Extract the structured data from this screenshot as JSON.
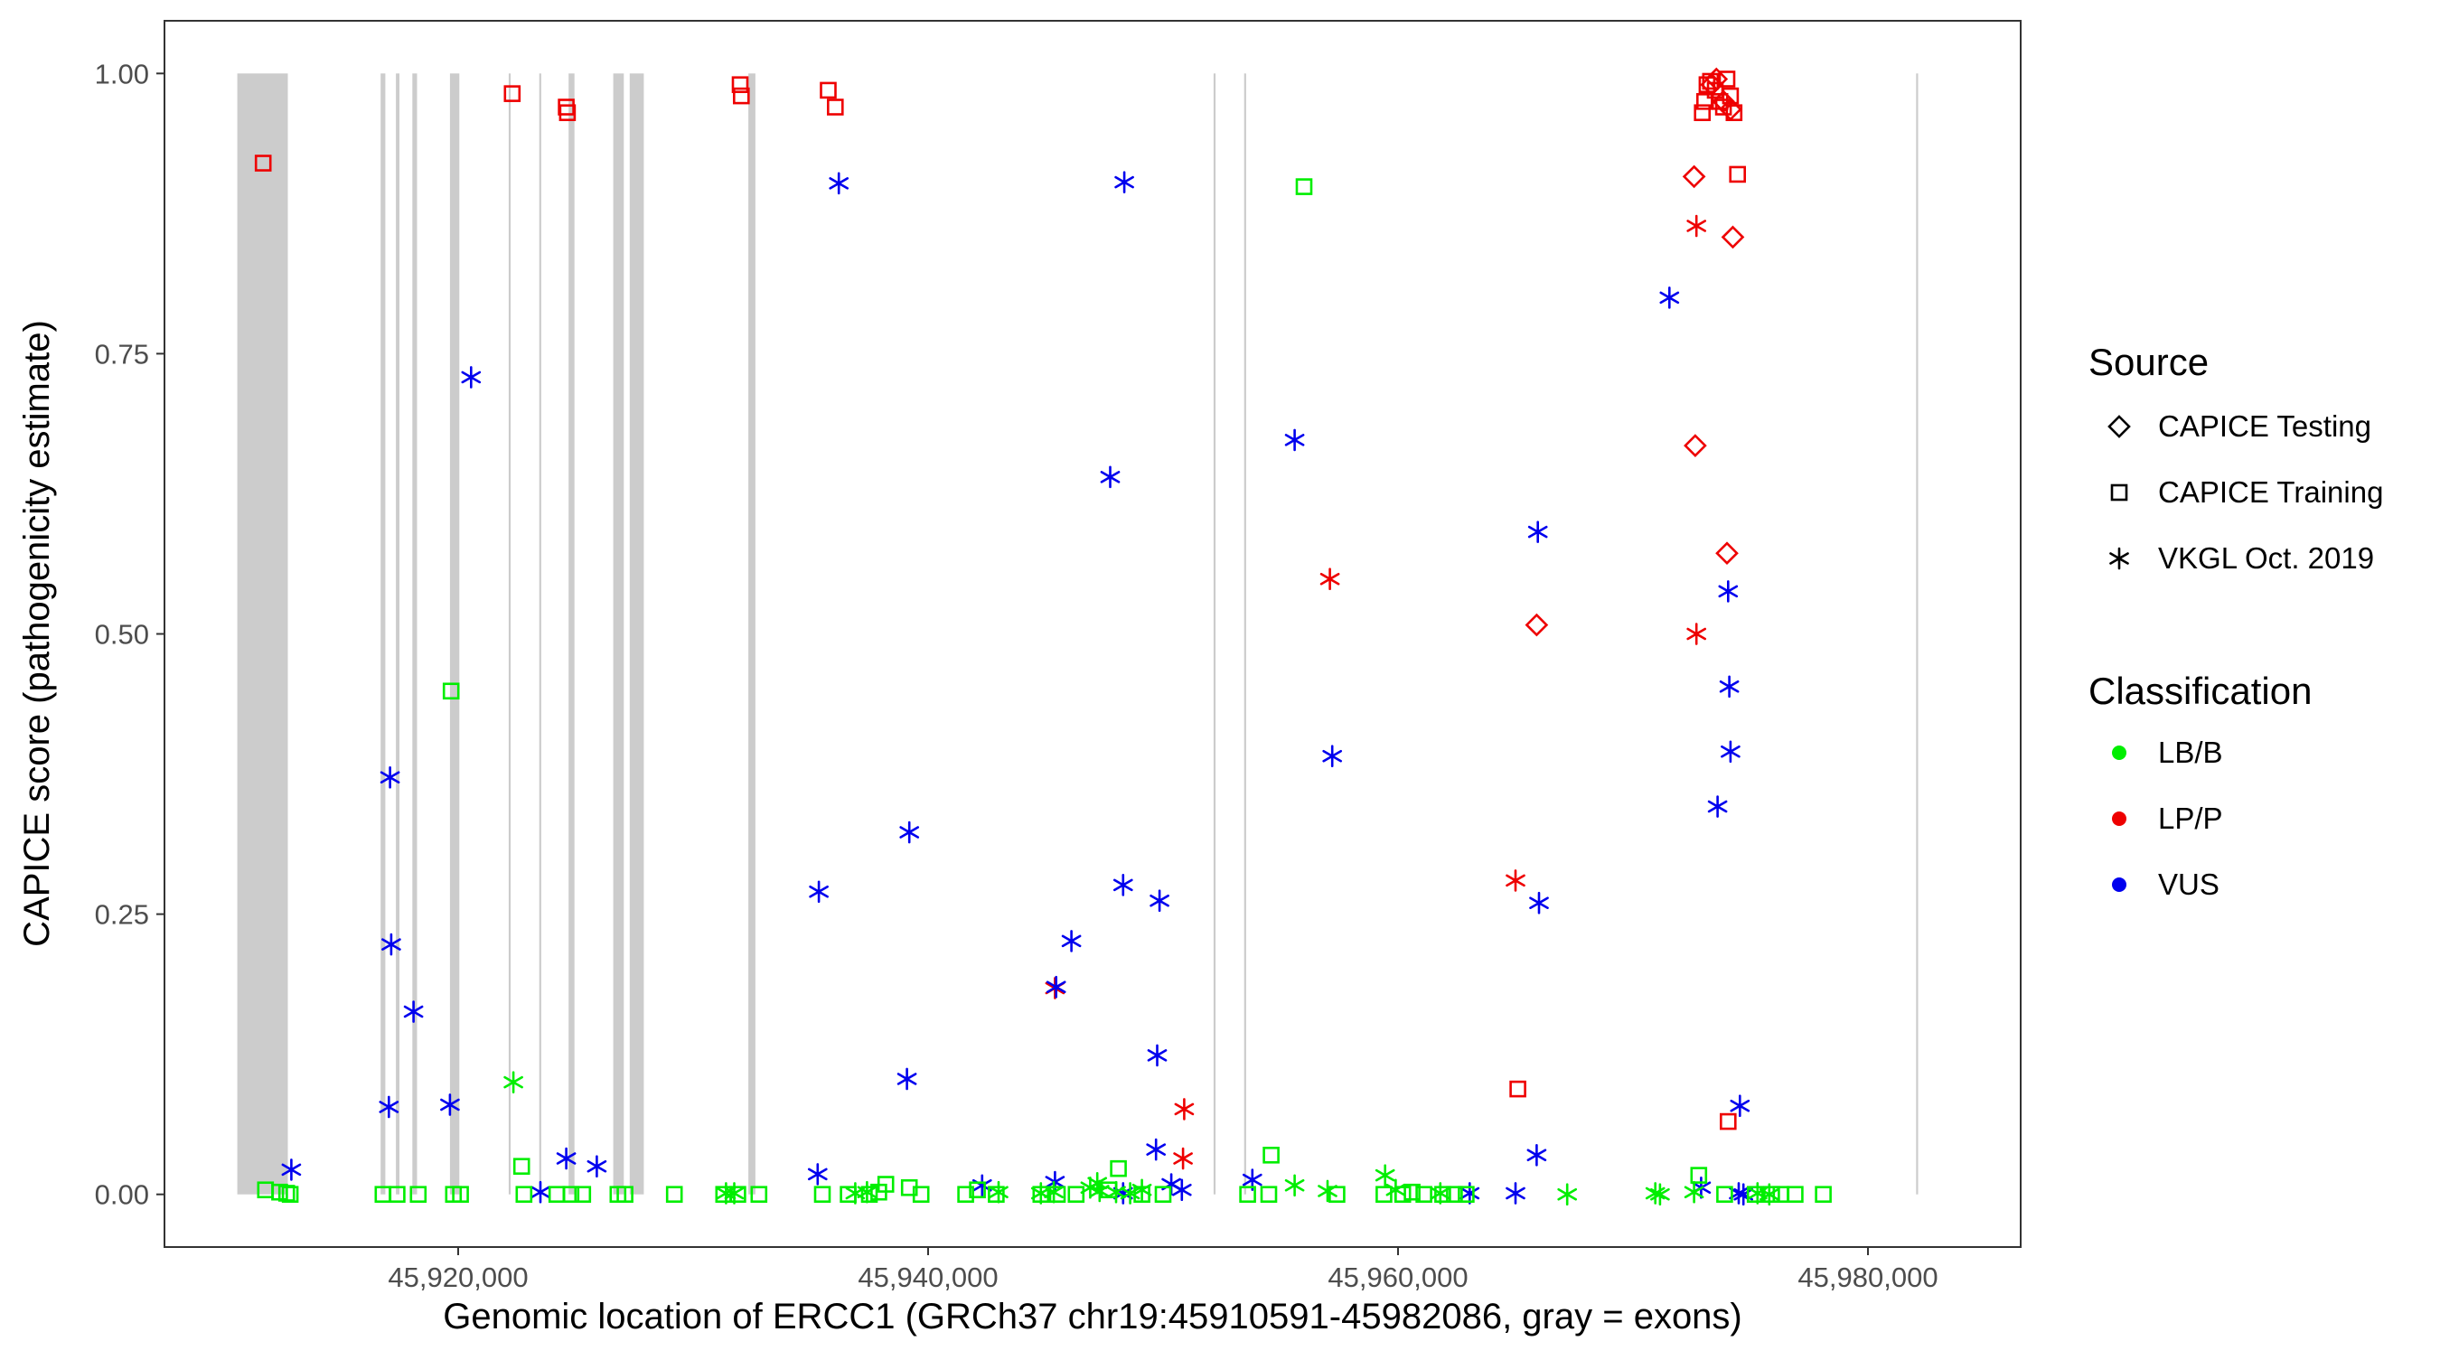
{
  "chart_data": {
    "type": "scatter",
    "title": "",
    "xlabel": "Genomic location of ERCC1 (GRCh37 chr19:45910591-45982086, gray = exons)",
    "ylabel": "CAPICE score (pathogenicity estimate)",
    "xlim": [
      45907500,
      45986500
    ],
    "ylim": [
      -0.047,
      1.047
    ],
    "x_ticks": [
      45920000,
      45940000,
      45960000,
      45980000
    ],
    "x_tick_labels": [
      "45,920,000",
      "45,940,000",
      "45,960,000",
      "45,980,000"
    ],
    "y_ticks": [
      0,
      0.25,
      0.5,
      0.75,
      1
    ],
    "y_tick_labels": [
      "0.00",
      "0.25",
      "0.50",
      "0.75",
      "1.00"
    ],
    "exons": [
      [
        45910600,
        45912750
      ],
      [
        45916700,
        45916900
      ],
      [
        45917350,
        45917500
      ],
      [
        45918050,
        45918250
      ],
      [
        45919650,
        45920050
      ],
      [
        45922150,
        45922200
      ],
      [
        45923450,
        45923500
      ],
      [
        45924700,
        45924950
      ],
      [
        45926600,
        45927050
      ],
      [
        45927300,
        45927900
      ],
      [
        45932350,
        45932650
      ],
      [
        45952150,
        45952200
      ],
      [
        45953450,
        45953500
      ],
      [
        45982050,
        45982100
      ]
    ],
    "legend": {
      "placement": "right",
      "source_title": "Source",
      "source_items": [
        {
          "label": "CAPICE Testing",
          "shape": "diamond"
        },
        {
          "label": "CAPICE Training",
          "shape": "square"
        },
        {
          "label": "VKGL Oct. 2019",
          "shape": "asterisk"
        }
      ],
      "class_title": "Classification",
      "class_items": [
        {
          "label": "LB/B",
          "color": "#00ee00"
        },
        {
          "label": "LP/P",
          "color": "#ee0000"
        },
        {
          "label": "VUS",
          "color": "#0000ee"
        }
      ]
    },
    "colors": {
      "LB/B": "#00ee00",
      "LP/P": "#ee0000",
      "VUS": "#0000ee",
      "exon": "#cccccc",
      "panel_border": "#333333"
    },
    "series": [
      {
        "name": "LP/P - CAPICE Training",
        "classification": "LP/P",
        "source": "CAPICE Training",
        "points": [
          [
            45911700,
            0.92
          ],
          [
            45922300,
            0.982
          ],
          [
            45924600,
            0.97
          ],
          [
            45924650,
            0.965
          ],
          [
            45932000,
            0.99
          ],
          [
            45932050,
            0.98
          ],
          [
            45935750,
            0.985
          ],
          [
            45936050,
            0.97
          ],
          [
            45965100,
            0.094
          ],
          [
            45972950,
            0.965
          ],
          [
            45973050,
            0.975
          ],
          [
            45973150,
            0.99
          ],
          [
            45973300,
            0.993
          ],
          [
            45973500,
            0.985
          ],
          [
            45973700,
            0.975
          ],
          [
            45973850,
            0.97
          ],
          [
            45974000,
            0.995
          ],
          [
            45974150,
            0.98
          ],
          [
            45974300,
            0.965
          ],
          [
            45974450,
            0.91
          ],
          [
            45974050,
            0.065
          ]
        ]
      },
      {
        "name": "LP/P - CAPICE Testing",
        "classification": "LP/P",
        "source": "CAPICE Testing",
        "points": [
          [
            45965900,
            0.508
          ],
          [
            45972600,
            0.908
          ],
          [
            45972650,
            0.668
          ],
          [
            45973350,
            0.99
          ],
          [
            45973550,
            0.995
          ],
          [
            45973850,
            0.975
          ],
          [
            45974000,
            0.572
          ],
          [
            45974150,
            0.968
          ],
          [
            45974250,
            0.854
          ]
        ]
      },
      {
        "name": "LP/P - VKGL Oct. 2019",
        "classification": "LP/P",
        "source": "VKGL Oct. 2019",
        "points": [
          [
            45945400,
            0.184
          ],
          [
            45950900,
            0.076
          ],
          [
            45950850,
            0.032
          ],
          [
            45957100,
            0.549
          ],
          [
            45965000,
            0.28
          ],
          [
            45972700,
            0.864
          ],
          [
            45972700,
            0.5
          ]
        ]
      },
      {
        "name": "VUS - VKGL Oct. 2019",
        "classification": "VUS",
        "source": "VKGL Oct. 2019",
        "points": [
          [
            45912900,
            0.022
          ],
          [
            45917100,
            0.372
          ],
          [
            45917150,
            0.223
          ],
          [
            45917050,
            0.078
          ],
          [
            45918100,
            0.163
          ],
          [
            45919650,
            0.08
          ],
          [
            45920550,
            0.729
          ],
          [
            45923500,
            0.002
          ],
          [
            45924600,
            0.032
          ],
          [
            45925900,
            0.025
          ],
          [
            45935350,
            0.27
          ],
          [
            45936200,
            0.902
          ],
          [
            45935300,
            0.018
          ],
          [
            45939200,
            0.323
          ],
          [
            45939100,
            0.103
          ],
          [
            45942300,
            0.008
          ],
          [
            45945450,
            0.185
          ],
          [
            45945400,
            0.011
          ],
          [
            45946100,
            0.226
          ],
          [
            45947750,
            0.64
          ],
          [
            45948300,
            0.276
          ],
          [
            45948350,
            0.903
          ],
          [
            45948300,
            0.001
          ],
          [
            45949850,
            0.262
          ],
          [
            45949750,
            0.124
          ],
          [
            45949700,
            0.04
          ],
          [
            45950350,
            0.009
          ],
          [
            45950800,
            0.004
          ],
          [
            45953800,
            0.013
          ],
          [
            45955600,
            0.673
          ],
          [
            45957200,
            0.391
          ],
          [
            45963050,
            0.001
          ],
          [
            45965000,
            0.001
          ],
          [
            45965950,
            0.591
          ],
          [
            45965900,
            0.035
          ],
          [
            45966000,
            0.26
          ],
          [
            45971550,
            0.8
          ],
          [
            45972900,
            0.006
          ],
          [
            45973600,
            0.346
          ],
          [
            45974050,
            0.538
          ],
          [
            45974100,
            0.453
          ],
          [
            45974150,
            0.395
          ],
          [
            45974550,
            0.079
          ],
          [
            45974500,
            0.001
          ],
          [
            45974700,
            0.0
          ]
        ]
      },
      {
        "name": "LB/B - VKGL Oct. 2019",
        "classification": "LB/B",
        "source": "VKGL Oct. 2019",
        "points": [
          [
            45922350,
            0.1
          ],
          [
            45931400,
            0.001
          ],
          [
            45931750,
            0.001
          ],
          [
            45936900,
            0.001
          ],
          [
            45937400,
            0.002
          ],
          [
            45943000,
            0.002
          ],
          [
            45944800,
            0.001
          ],
          [
            45945350,
            0.002
          ],
          [
            45946900,
            0.006
          ],
          [
            45947200,
            0.01
          ],
          [
            45947300,
            0.003
          ],
          [
            45948000,
            0.002
          ],
          [
            45948600,
            0.001
          ],
          [
            45949100,
            0.004
          ],
          [
            45955600,
            0.008
          ],
          [
            45957000,
            0.003
          ],
          [
            45959450,
            0.017
          ],
          [
            45959900,
            0.004
          ],
          [
            45961800,
            0.001
          ],
          [
            45967200,
            0.0
          ],
          [
            45970950,
            0.001
          ],
          [
            45971150,
            0.0
          ],
          [
            45972600,
            0.002
          ],
          [
            45975300,
            0.001
          ],
          [
            45975800,
            0.0
          ]
        ]
      },
      {
        "name": "LB/B - CAPICE Training",
        "classification": "LB/B",
        "source": "CAPICE Training",
        "points": [
          [
            45911800,
            0.004
          ],
          [
            45912400,
            0.002
          ],
          [
            45912700,
            0.001
          ],
          [
            45912850,
            0.0
          ],
          [
            45916800,
            0.0
          ],
          [
            45917400,
            0.0
          ],
          [
            45918300,
            0.0
          ],
          [
            45919700,
            0.449
          ],
          [
            45919800,
            0.0
          ],
          [
            45920100,
            0.0
          ],
          [
            45922700,
            0.025
          ],
          [
            45922800,
            0.0
          ],
          [
            45924200,
            0.0
          ],
          [
            45924800,
            0.0
          ],
          [
            45925300,
            0.0
          ],
          [
            45926800,
            0.0
          ],
          [
            45927100,
            0.0
          ],
          [
            45929200,
            0.0
          ],
          [
            45931300,
            0.0
          ],
          [
            45931900,
            0.0
          ],
          [
            45932800,
            0.0
          ],
          [
            45935500,
            0.0
          ],
          [
            45936600,
            0.0
          ],
          [
            45937500,
            0.0
          ],
          [
            45937900,
            0.002
          ],
          [
            45938200,
            0.009
          ],
          [
            45939200,
            0.006
          ],
          [
            45939700,
            0.0
          ],
          [
            45941600,
            0.0
          ],
          [
            45942100,
            0.004
          ],
          [
            45942900,
            0.0
          ],
          [
            45944800,
            0.0
          ],
          [
            45945500,
            0.0
          ],
          [
            45946300,
            0.0
          ],
          [
            45947700,
            0.004
          ],
          [
            45948100,
            0.023
          ],
          [
            45949100,
            0.0
          ],
          [
            45950000,
            0.0
          ],
          [
            45953600,
            0.0
          ],
          [
            45954500,
            0.0
          ],
          [
            45954600,
            0.035
          ],
          [
            45956000,
            0.899
          ],
          [
            45957400,
            0.0
          ],
          [
            45959400,
            0.0
          ],
          [
            45960200,
            0.0
          ],
          [
            45960600,
            0.002
          ],
          [
            45961100,
            0.0
          ],
          [
            45961900,
            0.0
          ],
          [
            45962400,
            0.0
          ],
          [
            45962900,
            0.0
          ],
          [
            45972800,
            0.017
          ],
          [
            45973900,
            0.0
          ],
          [
            45975200,
            0.0
          ],
          [
            45975900,
            0.0
          ],
          [
            45976300,
            0.0
          ],
          [
            45976900,
            0.0
          ],
          [
            45978100,
            0.0
          ]
        ]
      }
    ]
  }
}
